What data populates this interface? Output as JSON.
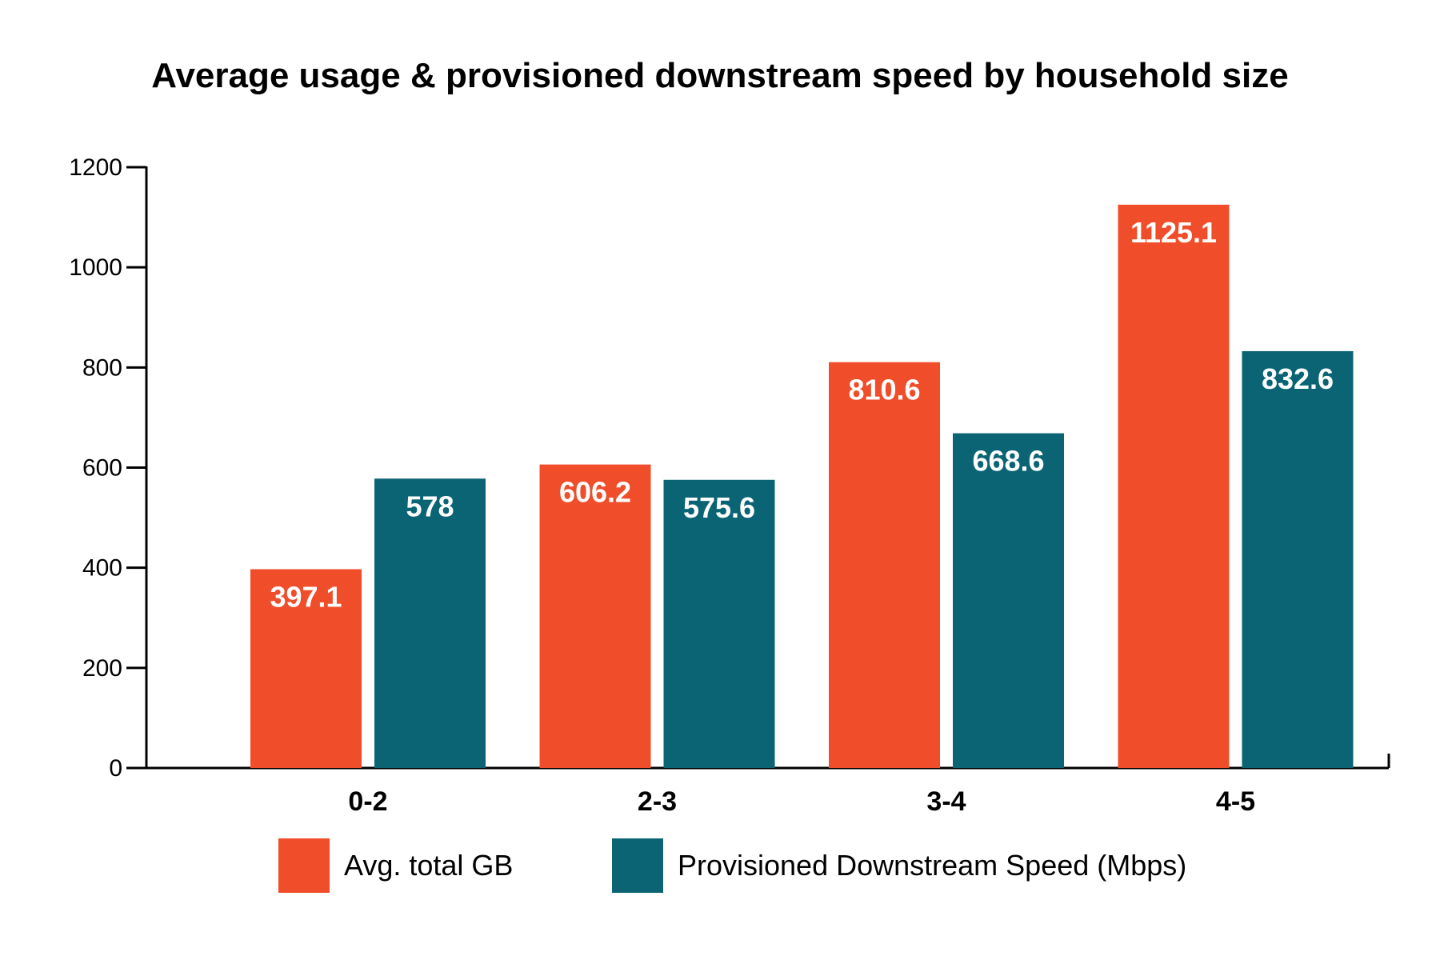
{
  "chart_data": {
    "type": "bar",
    "title": "Average usage & provisioned downstream speed by household size",
    "xlabel": "",
    "ylabel": "",
    "categories": [
      "0-2",
      "2-3",
      "3-4",
      "4-5"
    ],
    "series": [
      {
        "name": "Avg. total GB",
        "color": "#f04e2b",
        "values": [
          397.1,
          606.2,
          810.6,
          1125.1
        ]
      },
      {
        "name": "Provisioned Downstream Speed (Mbps)",
        "color": "#0b6474",
        "values": [
          578,
          575.6,
          668.6,
          832.6
        ]
      }
    ],
    "data_labels": [
      [
        "397.1",
        "606.2",
        "810.6",
        "1125.1"
      ],
      [
        "578",
        "575.6",
        "668.6",
        "832.6"
      ]
    ],
    "yticks": [
      "0",
      "200",
      "400",
      "600",
      "800",
      "1000",
      "1200"
    ],
    "ylim": [
      0,
      1200
    ],
    "grid": false,
    "legend_position": "bottom"
  }
}
